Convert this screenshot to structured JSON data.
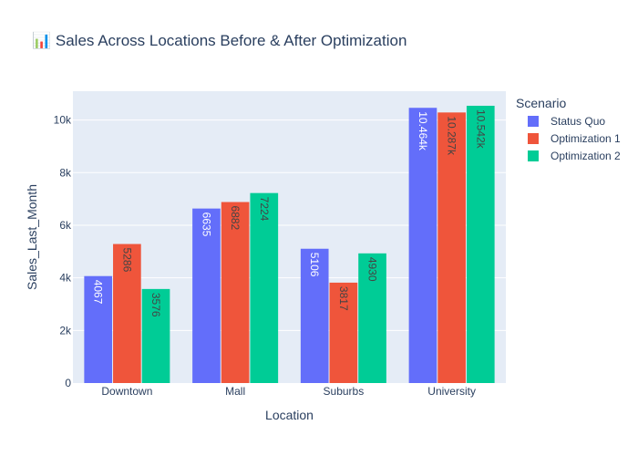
{
  "chart_data": {
    "type": "bar",
    "title": "📊 Sales Across Locations Before & After Optimization",
    "xlabel": "Location",
    "ylabel": "Sales_Last_Month",
    "categories": [
      "Downtown",
      "Mall",
      "Suburbs",
      "University"
    ],
    "ylim": [
      0,
      11096
    ],
    "yticks": [
      0,
      2000,
      4000,
      6000,
      8000,
      10000
    ],
    "ytick_labels": [
      "0",
      "2k",
      "4k",
      "6k",
      "8k",
      "10k"
    ],
    "grid": true,
    "legend": {
      "title": "Scenario",
      "placement": "right"
    },
    "series": [
      {
        "name": "Status Quo",
        "color": "#636efa",
        "values": [
          4067,
          6635,
          5106,
          10464
        ],
        "labels": [
          "4067",
          "6635",
          "5106",
          "10.464k"
        ],
        "label_color": "#ffffff"
      },
      {
        "name": "Optimization 1",
        "color": "#ef553b",
        "values": [
          5286,
          6882,
          3817,
          10287
        ],
        "labels": [
          "5286",
          "6882",
          "3817",
          "10.287k"
        ],
        "label_color": "#444444"
      },
      {
        "name": "Optimization 2",
        "color": "#00cc96",
        "values": [
          3576,
          7224,
          4930,
          10542
        ],
        "labels": [
          "3576",
          "7224",
          "4930",
          "10.542k"
        ],
        "label_color": "#444444"
      }
    ]
  }
}
